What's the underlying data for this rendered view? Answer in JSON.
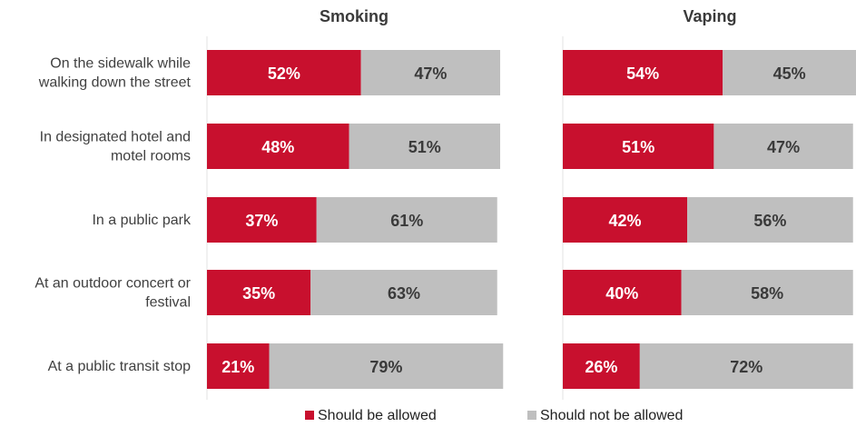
{
  "chart_data": {
    "type": "bar",
    "orientation": "horizontal",
    "stacked": true,
    "categories": [
      [
        "On the sidewalk while",
        "walking down the street"
      ],
      [
        "In designated hotel and",
        "motel rooms"
      ],
      [
        "In a public park"
      ],
      [
        "At an outdoor concert or",
        "festival"
      ],
      [
        "At a public transit stop"
      ]
    ],
    "panels": [
      {
        "title": "Smoking",
        "series": [
          {
            "name": "Should be allowed",
            "values": [
              52,
              48,
              37,
              35,
              21
            ],
            "labels": [
              "52%",
              "48%",
              "37%",
              "35%",
              "21%"
            ]
          },
          {
            "name": "Should not be allowed",
            "values": [
              47,
              51,
              61,
              63,
              79
            ],
            "labels": [
              "47%",
              "51%",
              "61%",
              "63%",
              "79%"
            ]
          }
        ]
      },
      {
        "title": "Vaping",
        "series": [
          {
            "name": "Should be allowed",
            "values": [
              54,
              51,
              42,
              40,
              26
            ],
            "labels": [
              "54%",
              "51%",
              "42%",
              "40%",
              "26%"
            ]
          },
          {
            "name": "Should not be allowed",
            "values": [
              45,
              47,
              56,
              58,
              72
            ],
            "labels": [
              "45%",
              "47%",
              "56%",
              "58%",
              "72%"
            ]
          }
        ]
      }
    ],
    "xlim": [
      0,
      100
    ],
    "legend": {
      "position": "bottom",
      "items": [
        {
          "label": "Should be allowed",
          "color": "#c8102e"
        },
        {
          "label": "Should not be allowed",
          "color": "#bfbfbf"
        }
      ]
    },
    "colors": {
      "allowed": "#c8102e",
      "not_allowed": "#bfbfbf",
      "allowed_text": "#ffffff",
      "not_allowed_text": "#3a3a3a"
    },
    "grid": false
  }
}
